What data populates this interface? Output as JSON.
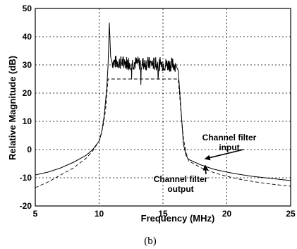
{
  "chart_data": {
    "type": "line",
    "title": "",
    "xlabel": "Frequency (MHz)",
    "ylabel": "Relative Magnitude (dB)",
    "xlim": [
      5,
      25
    ],
    "ylim": [
      -20,
      50
    ],
    "xticks": [
      5,
      10,
      15,
      20,
      25
    ],
    "yticks": [
      -20,
      -10,
      0,
      10,
      20,
      30,
      40,
      50
    ],
    "grid": true,
    "legend": "none",
    "series": [
      {
        "style": "solid",
        "x": [
          5,
          6,
          7,
          8,
          9,
          9.5,
          10,
          10.2,
          10.4,
          10.6,
          10.7,
          10.8,
          10.9,
          11.0,
          16.0,
          16.2,
          16.4,
          16.6,
          16.8,
          17,
          18,
          19,
          20,
          21,
          22,
          23,
          24,
          25
        ],
        "values": [
          -9,
          -8,
          -6.5,
          -4.5,
          -2,
          0,
          3,
          6,
          12,
          22,
          30,
          45,
          33,
          31,
          30,
          28,
          15,
          2,
          -2,
          -3.5,
          -5.5,
          -7,
          -8,
          -8.8,
          -9.5,
          -10,
          -10.5,
          -11
        ]
      },
      {
        "style": "dashed",
        "x": [
          5,
          6,
          7,
          8,
          9,
          9.5,
          10,
          10.3,
          10.5,
          10.7,
          16.2,
          16.4,
          16.6,
          16.8,
          17,
          18,
          19,
          20,
          21,
          22,
          23,
          24,
          25
        ],
        "values": [
          -13.5,
          -11.5,
          -9,
          -6.5,
          -3,
          -0.5,
          3,
          8,
          14,
          25,
          25,
          14,
          4,
          -1,
          -4,
          -6.5,
          -8.2,
          -9.5,
          -10.5,
          -11.3,
          -12,
          -12.5,
          -13
        ]
      }
    ],
    "annotations": [
      {
        "text": [
          "Channel filter",
          "input"
        ],
        "arrow_to": [
          18.3,
          -3.3
        ]
      },
      {
        "text": [
          "Channel filter",
          "output"
        ],
        "arrow_to": [
          18.3,
          -5.6
        ]
      }
    ],
    "caption": "(b)"
  }
}
